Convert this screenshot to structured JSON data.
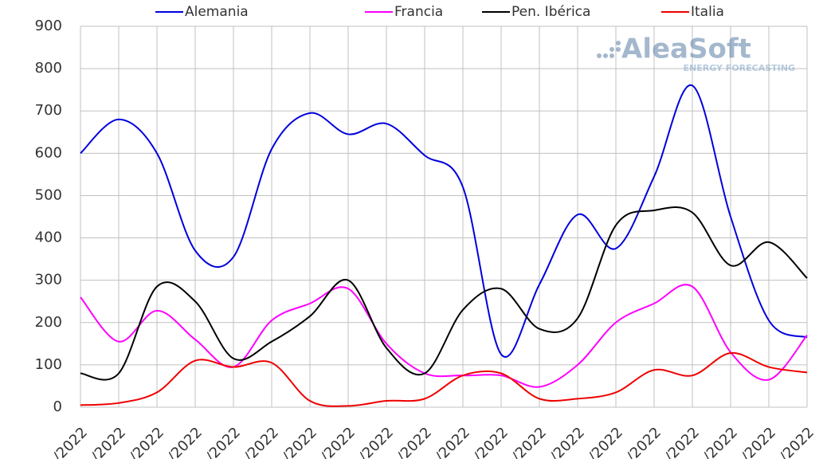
{
  "chart_data": {
    "type": "line",
    "categories": [
      "/2022",
      "/2022",
      "/2022",
      "/2022",
      "/2022",
      "/2022",
      "/2022",
      "/2022",
      "/2022",
      "/2022",
      "/2022",
      "/2022",
      "/2022",
      "/2022",
      "/2022",
      "/2022",
      "/2022",
      "/2022",
      "/2022",
      "/2022"
    ],
    "series": [
      {
        "name": "Alemania",
        "color": "#0000dd",
        "values": [
          600,
          680,
          600,
          370,
          355,
          610,
          695,
          645,
          670,
          595,
          520,
          125,
          290,
          455,
          375,
          545,
          760,
          450,
          205,
          165
        ]
      },
      {
        "name": "Francia",
        "color": "#ff00ff",
        "values": [
          260,
          155,
          228,
          160,
          95,
          205,
          245,
          280,
          150,
          80,
          75,
          75,
          48,
          100,
          200,
          245,
          285,
          130,
          65,
          170
        ]
      },
      {
        "name": "Pen. Ibérica",
        "color": "#000000",
        "values": [
          80,
          80,
          285,
          250,
          115,
          155,
          215,
          300,
          140,
          80,
          230,
          280,
          185,
          210,
          430,
          465,
          460,
          335,
          390,
          305
        ]
      },
      {
        "name": "Italia",
        "color": "#ee0000",
        "values": [
          5,
          10,
          35,
          110,
          95,
          105,
          15,
          3,
          15,
          20,
          75,
          80,
          20,
          20,
          35,
          88,
          75,
          128,
          95,
          82
        ]
      }
    ],
    "ylim": [
      0,
      900
    ],
    "yticks": [
      0,
      100,
      200,
      300,
      400,
      500,
      600,
      700,
      800,
      900
    ],
    "grid": true,
    "legend": "top",
    "watermark": {
      "brand": "AleaSoft",
      "tagline": "ENERGY FORECASTING"
    }
  }
}
